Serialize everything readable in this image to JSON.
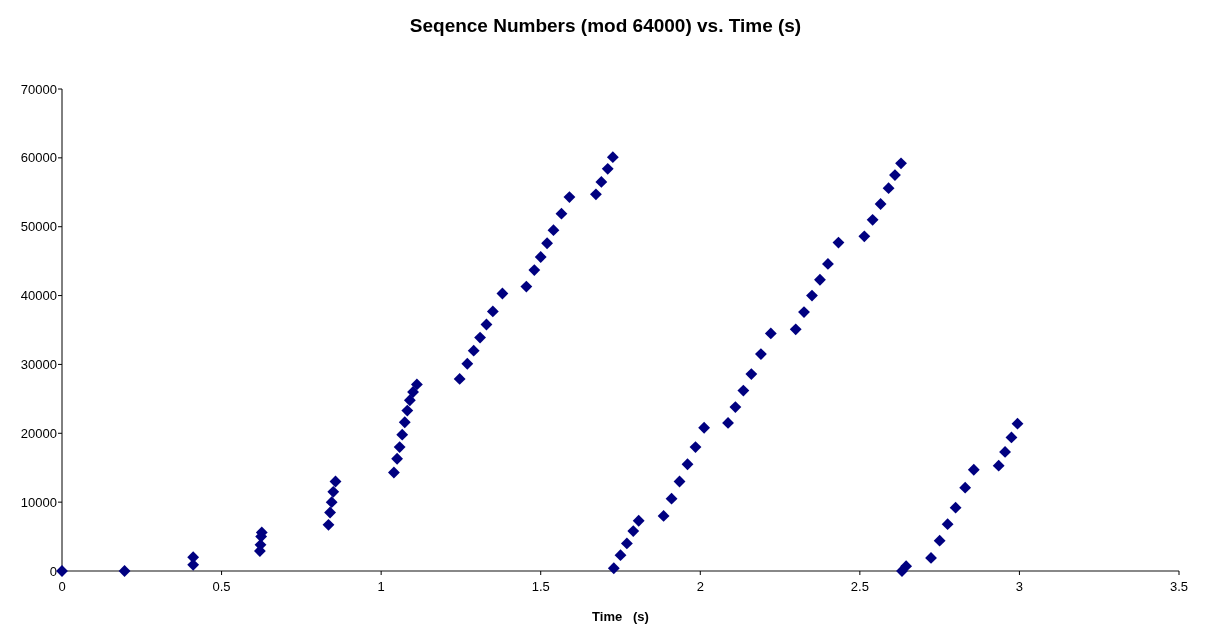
{
  "chart_data": {
    "type": "scatter",
    "title": "Seqence Numbers (mod 64000) vs. Time (s)",
    "xlabel": "Time   (s)",
    "xlim": [
      0,
      3.5
    ],
    "xticks": [
      0,
      0.5,
      1,
      1.5,
      2,
      2.5,
      3,
      3.5
    ],
    "ylim": [
      0,
      70000
    ],
    "yticks": [
      0,
      10000,
      20000,
      30000,
      40000,
      50000,
      60000,
      70000
    ],
    "grid": false,
    "marker": "diamond",
    "series": [
      {
        "color": "#000080",
        "x": [
          0,
          0.196,
          0.411,
          0.411,
          0.62,
          0.622,
          0.624,
          0.626,
          0.835,
          0.84,
          0.845,
          0.85,
          0.857,
          1.04,
          1.05,
          1.058,
          1.066,
          1.074,
          1.082,
          1.09,
          1.1,
          1.112,
          1.246,
          1.27,
          1.29,
          1.31,
          1.33,
          1.35,
          1.38,
          1.455,
          1.48,
          1.5,
          1.52,
          1.54,
          1.565,
          1.59,
          1.673,
          1.69,
          1.71,
          1.726,
          1.729,
          1.75,
          1.77,
          1.79,
          1.807,
          1.885,
          1.91,
          1.935,
          1.96,
          1.985,
          2.012,
          2.087,
          2.11,
          2.135,
          2.16,
          2.19,
          2.221,
          2.299,
          2.325,
          2.35,
          2.375,
          2.4,
          2.433,
          2.514,
          2.54,
          2.565,
          2.59,
          2.61,
          2.629,
          2.632,
          2.645,
          2.723,
          2.75,
          2.775,
          2.8,
          2.83,
          2.857,
          2.935,
          2.955,
          2.975,
          2.994
        ],
        "values": [
          0,
          0,
          900,
          2000,
          2900,
          3800,
          5000,
          5600,
          6700,
          8500,
          10000,
          11500,
          13000,
          14300,
          16300,
          18000,
          19800,
          21600,
          23300,
          24800,
          26000,
          27100,
          27900,
          30100,
          32000,
          33900,
          35800,
          37700,
          40300,
          41300,
          43700,
          45600,
          47600,
          49500,
          51900,
          54300,
          54700,
          56500,
          58400,
          60100,
          400,
          2300,
          4000,
          5800,
          7300,
          8000,
          10500,
          13000,
          15500,
          18000,
          20800,
          21500,
          23800,
          26200,
          28600,
          31500,
          34500,
          35100,
          37600,
          40000,
          42300,
          44600,
          47700,
          48600,
          51000,
          53300,
          55600,
          57500,
          59200,
          0,
          700,
          1900,
          4400,
          6800,
          9200,
          12100,
          14700,
          15300,
          17300,
          19400,
          21400
        ]
      }
    ]
  }
}
